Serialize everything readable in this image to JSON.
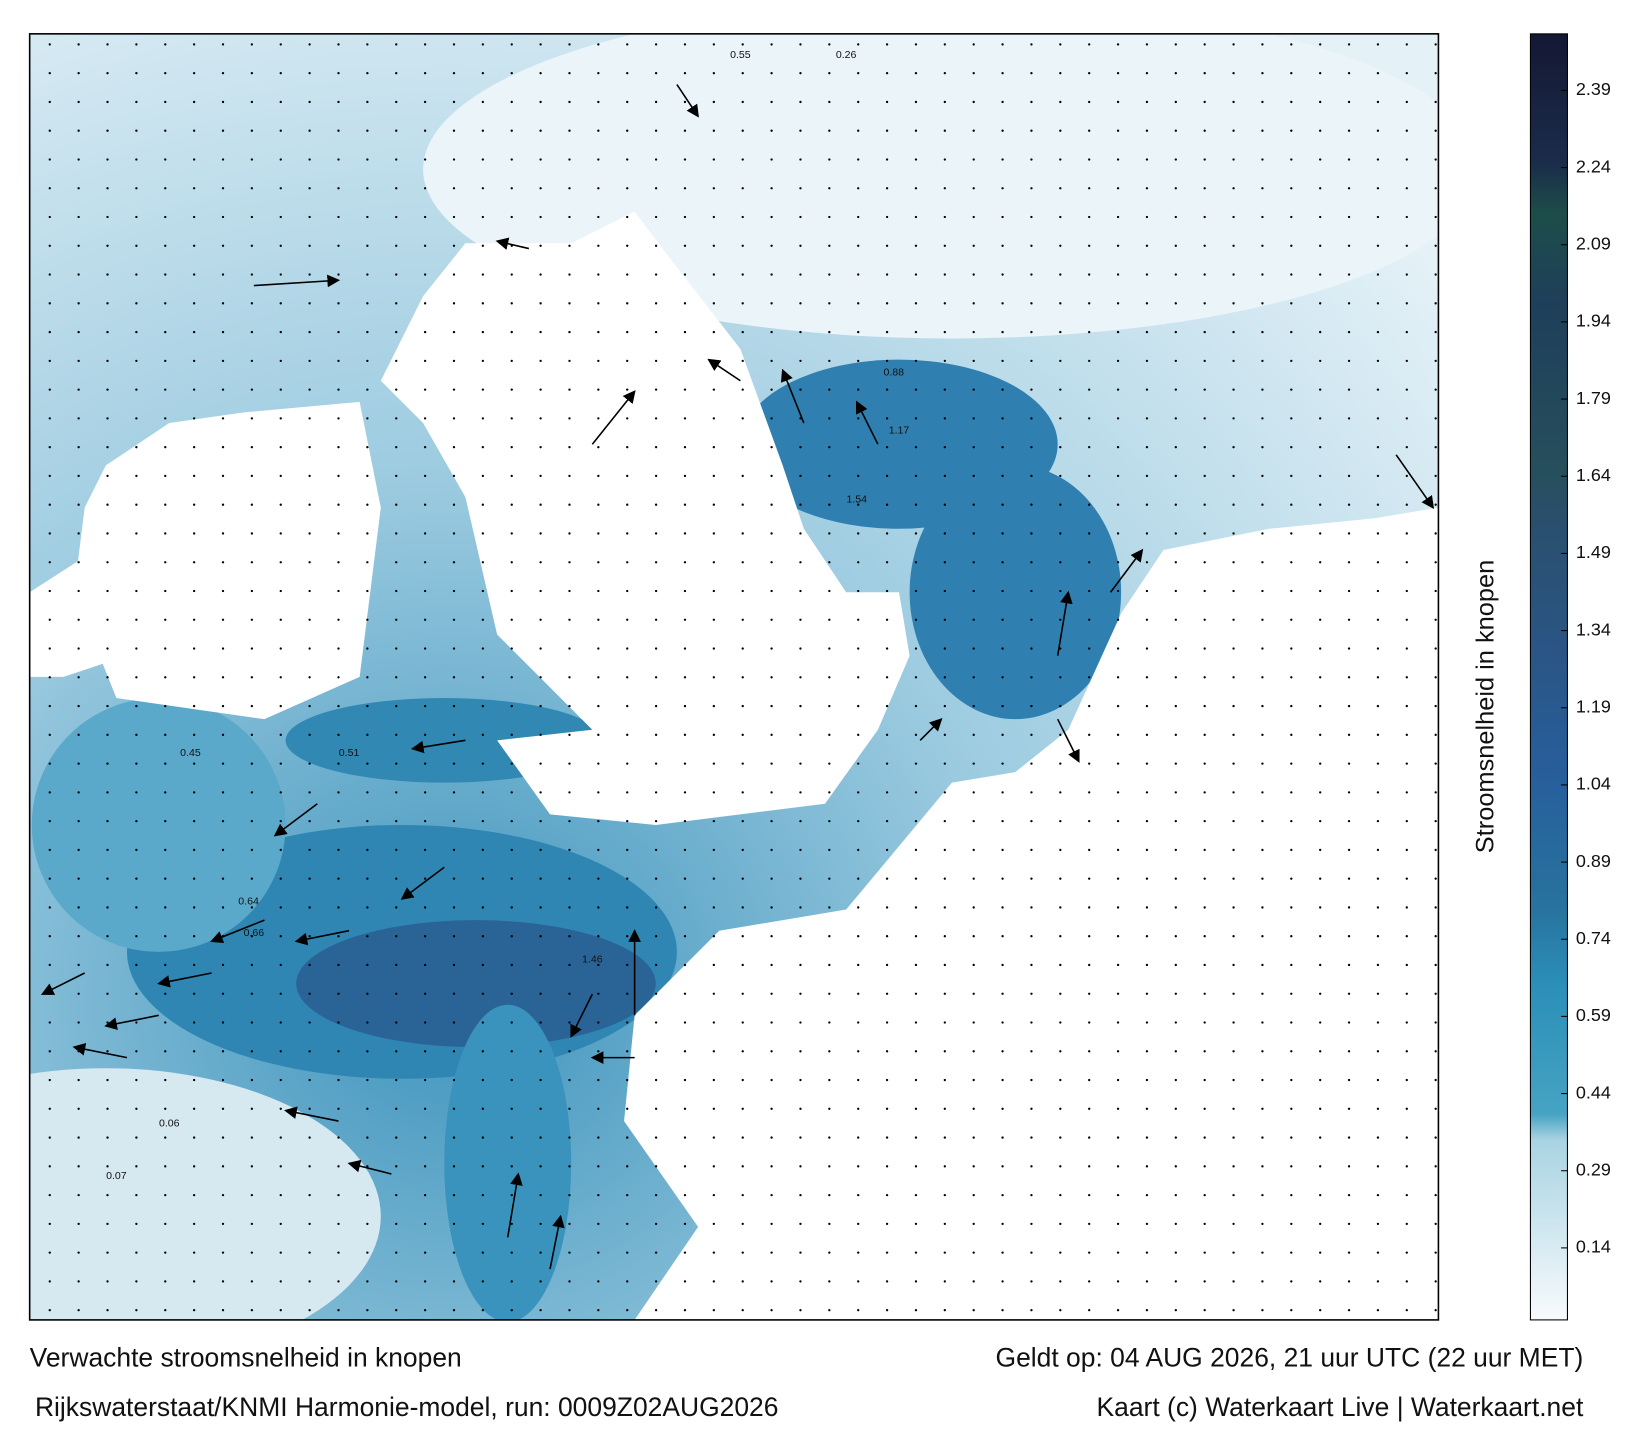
{
  "title": "Verwachte stroomsnelheid in knopen",
  "valid_time": "Geldt op: 04 AUG 2026, 21 uur UTC (22 uur MET)",
  "source": "Rijkswaterstaat/KNMI Harmonie-model, run: 0009Z02AUG2026",
  "credit": "Kaart (c) Waterkaart Live | Waterkaart.net",
  "colorbar": {
    "label": "Stroomsnelheid in knopen",
    "lim": [
      0,
      2.5
    ],
    "ticks": [
      0.14,
      0.29,
      0.44,
      0.59,
      0.74,
      0.89,
      1.04,
      1.19,
      1.34,
      1.49,
      1.64,
      1.79,
      1.94,
      2.09,
      2.24,
      2.39
    ]
  },
  "speed_labels": [
    "0.55",
    "0.26",
    "0.51",
    "1.17",
    "0.88",
    "1.54",
    "0.64",
    "0.66",
    "1.46",
    "0.45",
    "0.06",
    "0.07"
  ]
}
